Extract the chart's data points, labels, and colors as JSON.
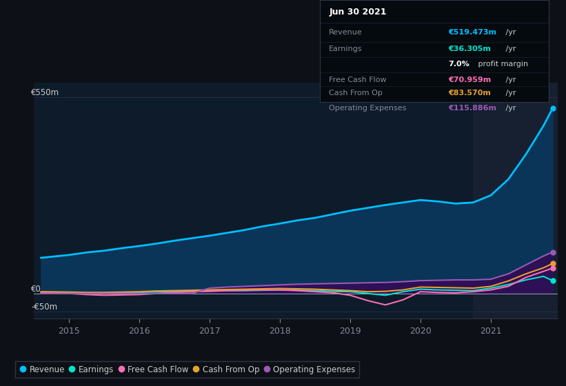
{
  "background_color": "#0d1117",
  "plot_bg_color": "#0d1b2a",
  "ylabel_top": "€550m",
  "ylabel_zero": "€0",
  "ylabel_neg": "-€50m",
  "xlim": [
    2014.5,
    2021.95
  ],
  "ylim": [
    -70,
    590
  ],
  "xticks": [
    2015,
    2016,
    2017,
    2018,
    2019,
    2020,
    2021
  ],
  "years": [
    2014.6,
    2015.0,
    2015.25,
    2015.5,
    2015.75,
    2016.0,
    2016.25,
    2016.5,
    2016.75,
    2017.0,
    2017.25,
    2017.5,
    2017.75,
    2018.0,
    2018.25,
    2018.5,
    2018.75,
    2019.0,
    2019.25,
    2019.5,
    2019.75,
    2020.0,
    2020.25,
    2020.5,
    2020.75,
    2021.0,
    2021.25,
    2021.5,
    2021.75,
    2021.88
  ],
  "revenue": [
    100,
    108,
    115,
    120,
    127,
    133,
    140,
    148,
    155,
    162,
    170,
    178,
    188,
    196,
    205,
    212,
    222,
    232,
    240,
    248,
    255,
    262,
    258,
    252,
    255,
    275,
    320,
    390,
    470,
    519
  ],
  "earnings": [
    2,
    2,
    1,
    1,
    2,
    3,
    5,
    6,
    7,
    8,
    8,
    8,
    9,
    10,
    9,
    8,
    6,
    5,
    0,
    -5,
    5,
    12,
    10,
    9,
    8,
    15,
    25,
    38,
    48,
    36
  ],
  "free_cash_flow": [
    3,
    0,
    -3,
    -5,
    -4,
    -3,
    0,
    3,
    5,
    6,
    8,
    9,
    10,
    10,
    8,
    5,
    2,
    -5,
    -20,
    -32,
    -18,
    5,
    3,
    2,
    5,
    10,
    20,
    45,
    62,
    71
  ],
  "cash_from_op": [
    5,
    4,
    3,
    3,
    4,
    5,
    7,
    8,
    9,
    10,
    11,
    12,
    13,
    14,
    13,
    12,
    10,
    8,
    5,
    6,
    10,
    18,
    17,
    16,
    15,
    20,
    35,
    55,
    72,
    84
  ],
  "op_expenses": [
    0,
    0,
    0,
    0,
    0,
    0,
    0,
    0,
    0,
    15,
    18,
    20,
    22,
    24,
    26,
    27,
    28,
    29,
    30,
    31,
    33,
    36,
    37,
    38,
    38,
    40,
    55,
    80,
    105,
    116
  ],
  "revenue_color": "#00bfff",
  "earnings_color": "#00e5cc",
  "fcf_color": "#ff6eb4",
  "cfo_color": "#e8a030",
  "opex_color": "#9b59b6",
  "revenue_fill": "#0a3558",
  "opex_fill": "#2d1055",
  "highlight_start": 2020.75,
  "highlight_color": "#162030",
  "table_title": "Jun 30 2021",
  "table_revenue_label": "Revenue",
  "table_revenue_value": "€519.473m",
  "table_earnings_label": "Earnings",
  "table_earnings_value": "€36.305m",
  "table_margin": "7.0%",
  "table_margin_suffix": " profit margin",
  "table_fcf_label": "Free Cash Flow",
  "table_fcf_value": "€70.959m",
  "table_cfo_label": "Cash From Op",
  "table_cfo_value": "€83.570m",
  "table_opex_label": "Operating Expenses",
  "table_opex_value": "€115.886m",
  "per_yr": " /yr",
  "legend_labels": [
    "Revenue",
    "Earnings",
    "Free Cash Flow",
    "Cash From Op",
    "Operating Expenses"
  ]
}
